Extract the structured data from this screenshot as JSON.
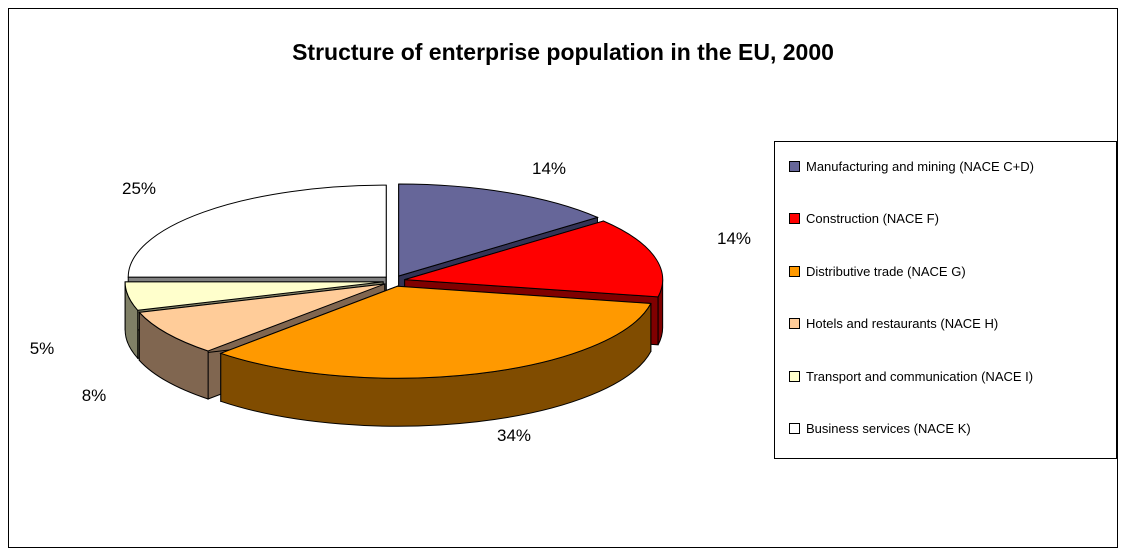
{
  "chart_data": {
    "type": "pie",
    "title": "Structure of enterprise population in the EU, 2000",
    "legend_position": "right",
    "slices": [
      {
        "label": "Manufacturing and mining (NACE C+D)",
        "value": 14,
        "display": "14%",
        "color": "#666699"
      },
      {
        "label": "Construction (NACE F)",
        "value": 14,
        "display": "14%",
        "color": "#ff0000"
      },
      {
        "label": "Distributive trade (NACE G)",
        "value": 34,
        "display": "34%",
        "color": "#ff9900"
      },
      {
        "label": "Hotels and restaurants (NACE H)",
        "value": 8,
        "display": "8%",
        "color": "#ffcc99"
      },
      {
        "label": "Transport and communication (NACE I)",
        "value": 5,
        "display": "5%",
        "color": "#ffffcc"
      },
      {
        "label": "Business services (NACE K)",
        "value": 25,
        "display": "25%",
        "color": "#ffffff"
      }
    ]
  }
}
